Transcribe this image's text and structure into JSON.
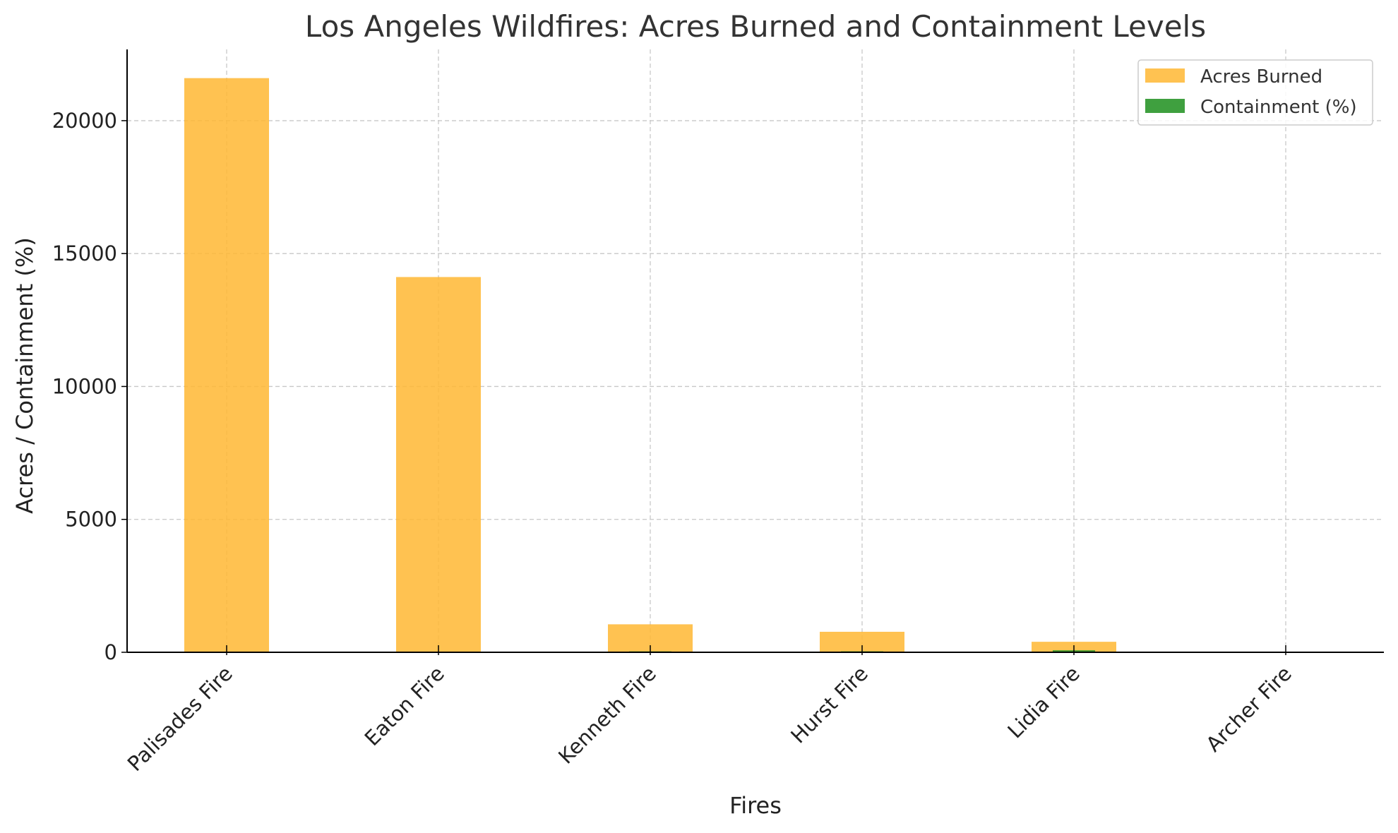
{
  "chart_data": {
    "type": "bar",
    "title": "Los Angeles Wildfires: Acres Burned and Containment Levels",
    "xlabel": "Fires",
    "ylabel": "Acres / Containment (%)",
    "categories": [
      "Palisades Fire",
      "Eaton Fire",
      "Kenneth Fire",
      "Hurst Fire",
      "Lidia Fire",
      "Archer Fire"
    ],
    "series": [
      {
        "name": "Acres Burned",
        "color": "#ffb733",
        "values": [
          21600,
          14117,
          1052,
          771,
          395,
          0
        ]
      },
      {
        "name": "Containment (%)",
        "color": "#2a962a",
        "values": [
          0,
          0,
          35,
          37,
          75,
          0
        ]
      }
    ],
    "ylim": [
      0,
      22680
    ],
    "yticks": [
      0,
      5000,
      10000,
      15000,
      20000
    ],
    "grid": true,
    "legend_position": "top-right"
  }
}
